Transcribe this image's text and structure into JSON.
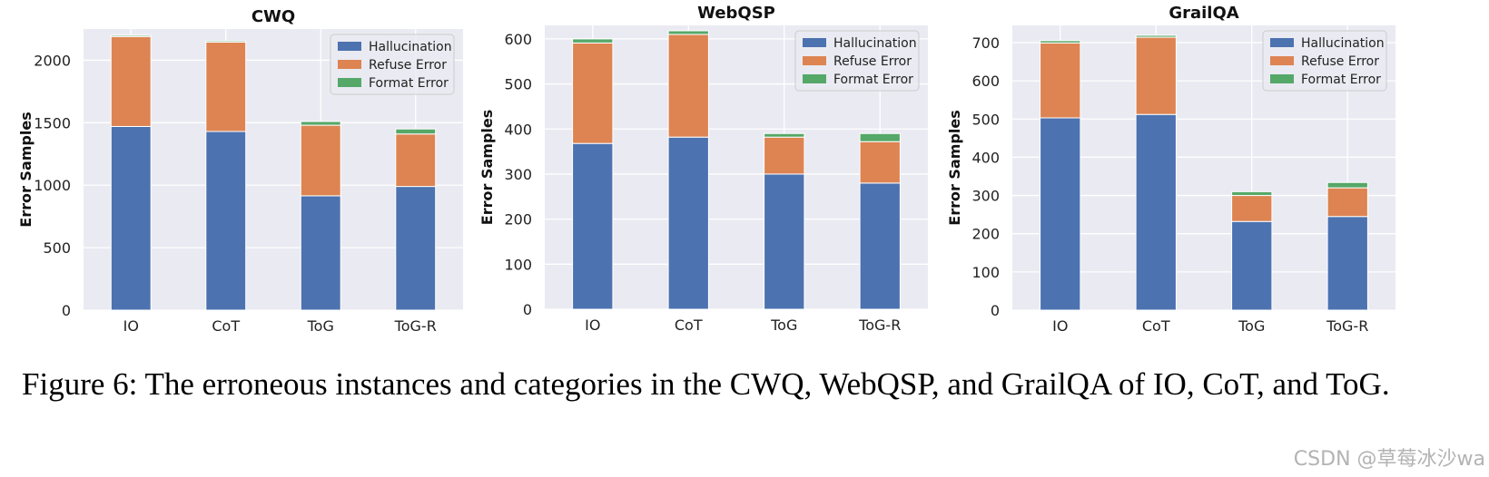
{
  "colors": {
    "Hallucination": "#4c72b0",
    "Refuse Error": "#dd8452",
    "Format Error": "#55a868",
    "plot_bg": "#eaeaf2",
    "grid": "#ffffff"
  },
  "chart_data": [
    {
      "type": "bar",
      "stacked": true,
      "title": "CWQ",
      "ylabel": "Error Samples",
      "categories": [
        "IO",
        "CoT",
        "ToG",
        "ToG-R"
      ],
      "ylim": [
        0,
        2250
      ],
      "yticks": [
        0,
        500,
        1000,
        1500,
        2000
      ],
      "legend_position": "top-right",
      "series": [
        {
          "name": "Hallucination",
          "values": [
            1470,
            1430,
            915,
            990
          ]
        },
        {
          "name": "Refuse Error",
          "values": [
            720,
            715,
            565,
            420
          ]
        },
        {
          "name": "Format Error",
          "values": [
            10,
            10,
            30,
            40
          ]
        }
      ]
    },
    {
      "type": "bar",
      "stacked": true,
      "title": "WebQSP",
      "ylabel": "Error Samples",
      "categories": [
        "IO",
        "CoT",
        "ToG",
        "ToG-R"
      ],
      "ylim": [
        0,
        630
      ],
      "yticks": [
        0,
        100,
        200,
        300,
        400,
        500,
        600
      ],
      "legend_position": "top-right",
      "series": [
        {
          "name": "Hallucination",
          "values": [
            368,
            382,
            300,
            280
          ]
        },
        {
          "name": "Refuse Error",
          "values": [
            223,
            228,
            82,
            92
          ]
        },
        {
          "name": "Format Error",
          "values": [
            9,
            8,
            8,
            18
          ]
        }
      ]
    },
    {
      "type": "bar",
      "stacked": true,
      "title": "GrailQA",
      "ylabel": "Error Samples",
      "categories": [
        "IO",
        "CoT",
        "ToG",
        "ToG-R"
      ],
      "ylim": [
        0,
        745
      ],
      "yticks": [
        0,
        100,
        200,
        300,
        400,
        500,
        600,
        700
      ],
      "legend_position": "top-right",
      "series": [
        {
          "name": "Hallucination",
          "values": [
            503,
            512,
            232,
            245
          ]
        },
        {
          "name": "Refuse Error",
          "values": [
            196,
            202,
            68,
            75
          ]
        },
        {
          "name": "Format Error",
          "values": [
            6,
            5,
            10,
            14
          ]
        }
      ]
    }
  ],
  "caption": "Figure 6: The erroneous instances and categories in the CWQ, WebQSP, and GrailQA of IO, CoT, and ToG.",
  "watermark": "CSDN @草莓冰沙wa"
}
